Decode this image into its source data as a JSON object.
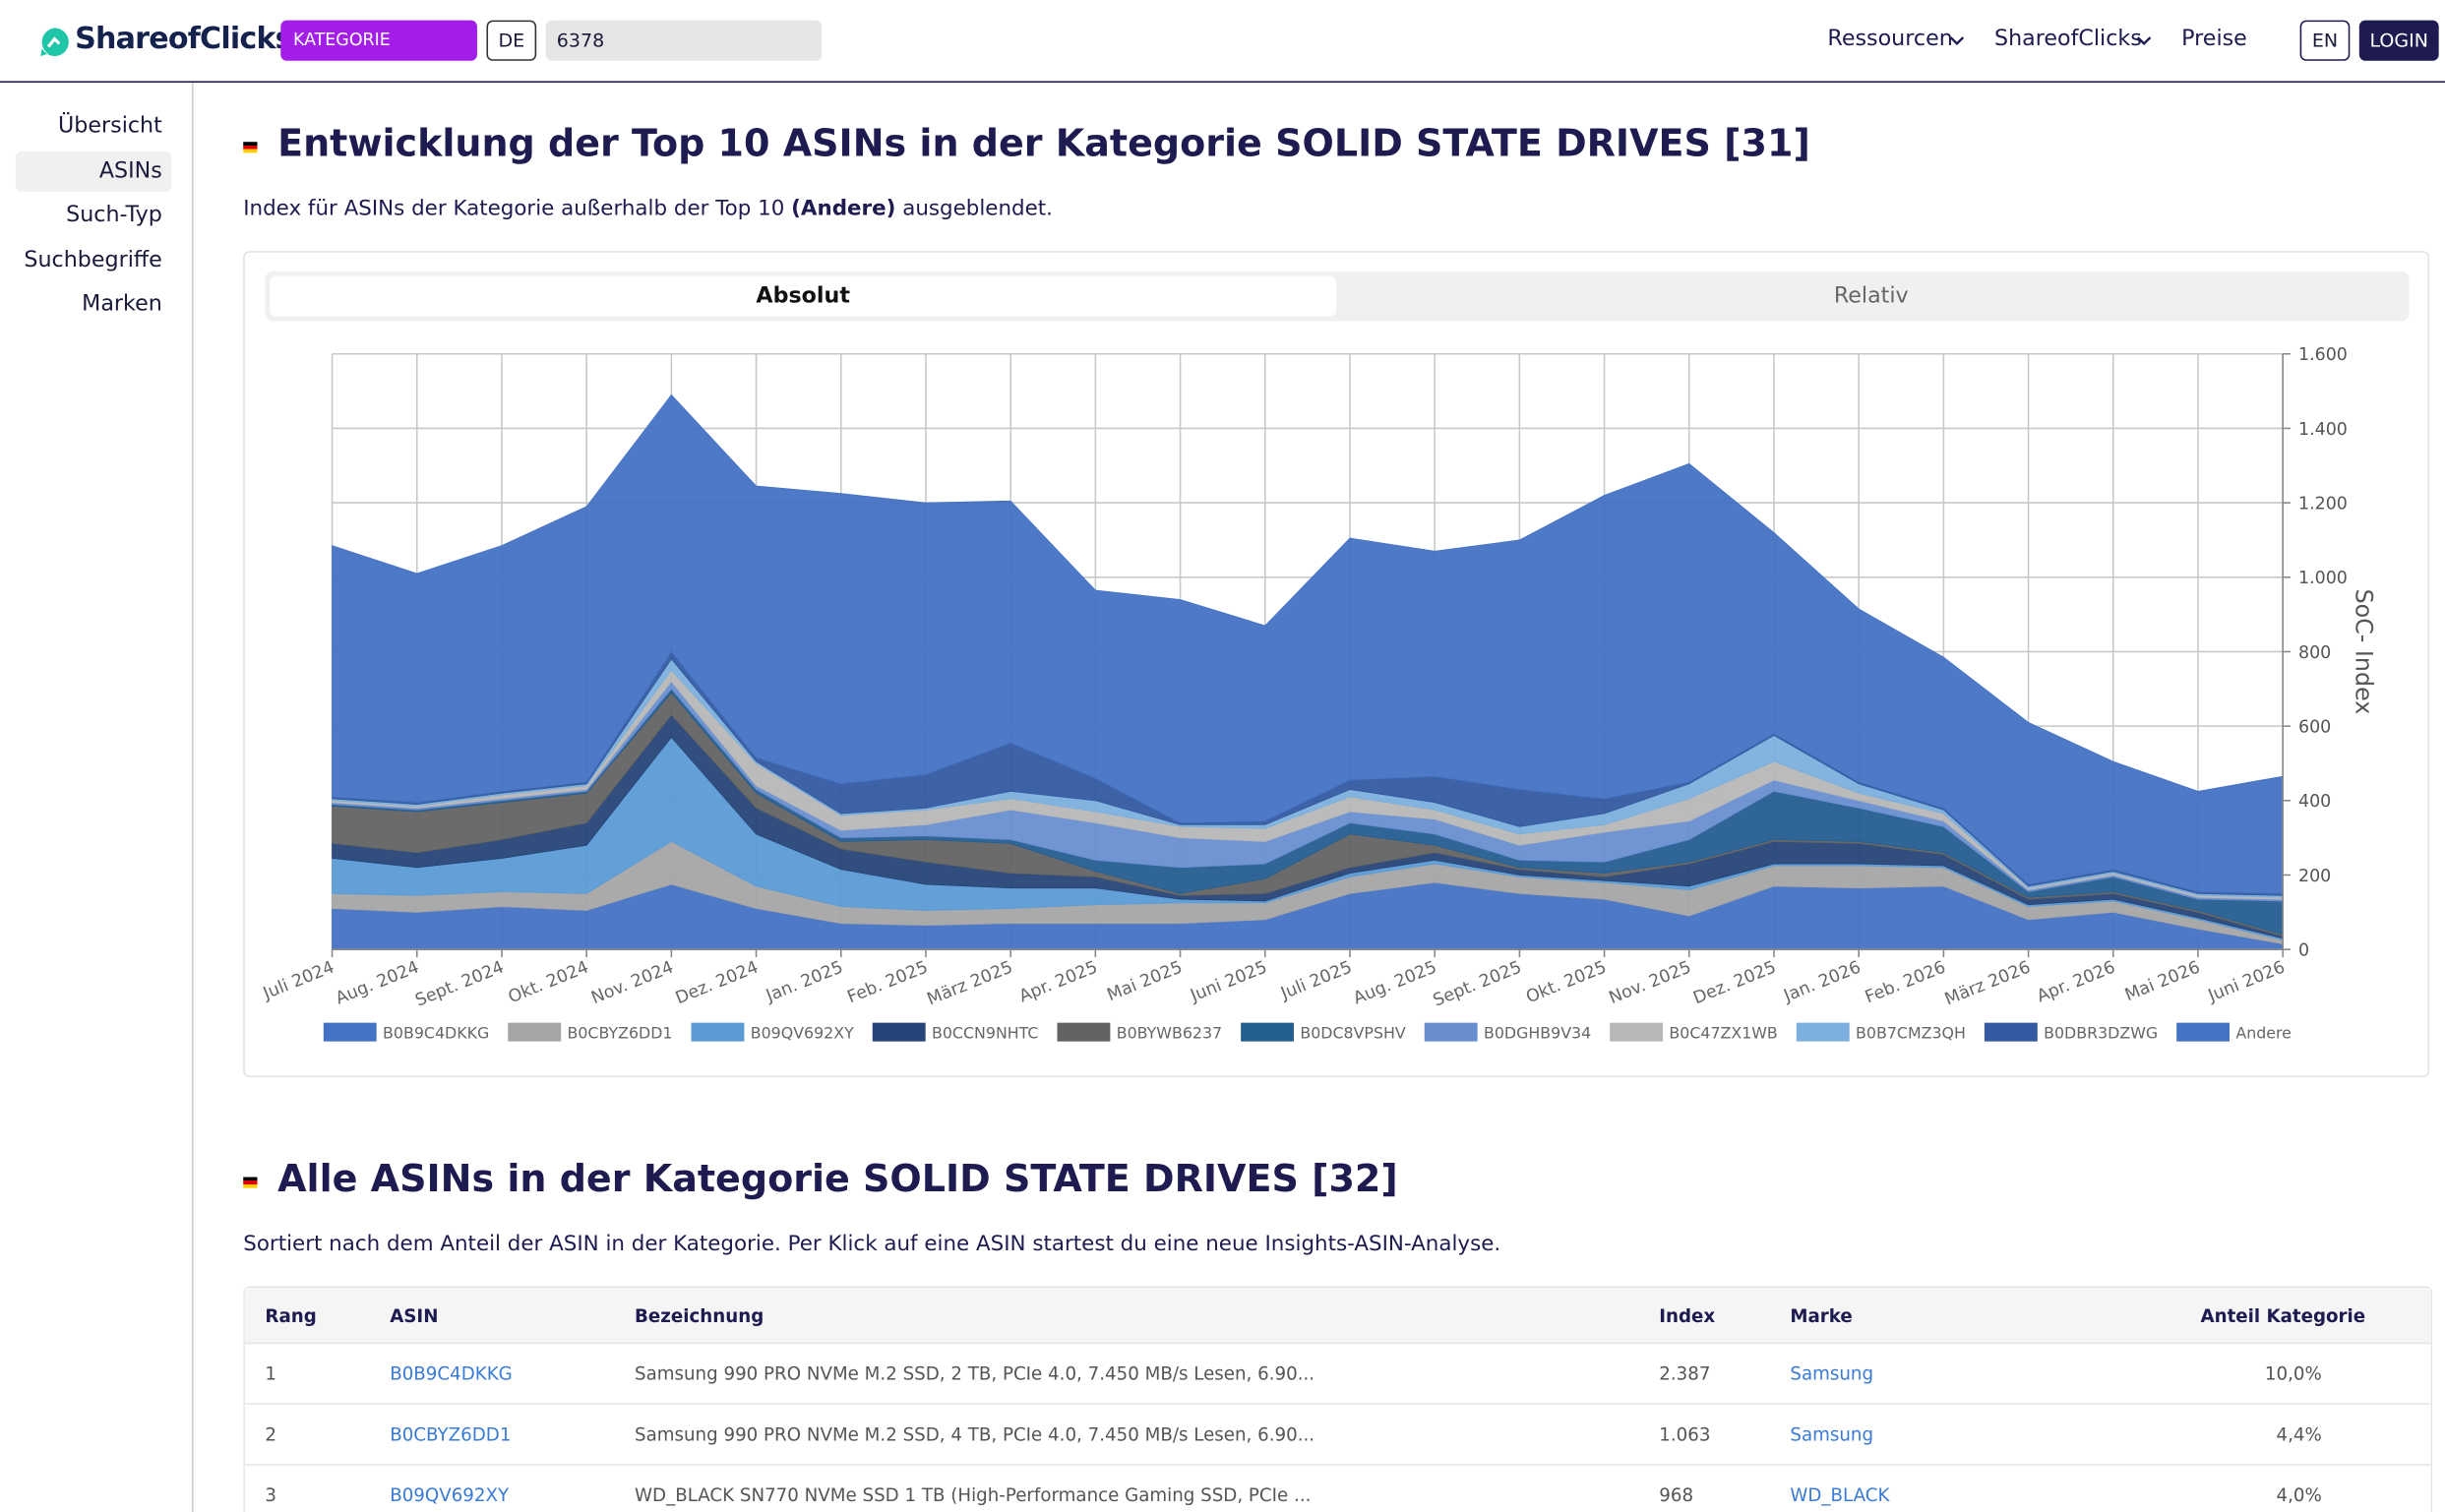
{
  "header": {
    "logo": "ShareofClicks",
    "mode": "KATEGORIE",
    "country": "DE",
    "category_id": "6378",
    "nav": [
      "Ressourcen",
      "ShareofClicks",
      "Preise"
    ],
    "language": "EN",
    "login": "LOGIN"
  },
  "sidebar": [
    "Übersicht",
    "ASINs",
    "Such-Typ",
    "Suchbegriffe",
    "Marken"
  ],
  "section1_note": {
    "before": "Index für ASINs der Kategorie außerhalb der Top 10",
    "bold": "(Andere)",
    "after": "ausgeblendet."
  },
  "view_tabs": [
    "Absolut",
    "Relativ"
  ],
  "chart_data": {
    "type": "stacked_area",
    "title": "Entwicklung der Top 10 ASINs in der Kategorie SOLID STATE DRIVES [31]",
    "y_label": "SoC- Index",
    "categories": [
      "Juli 2024",
      "Aug. 2024",
      "Sept. 2024",
      "Okt. 2024",
      "Nov. 2024",
      "Dez. 2024",
      "Jan. 2025",
      "Feb. 2025",
      "März 2025",
      "Apr. 2025",
      "Mai 2025",
      "Juni 2025",
      "Juli 2025",
      "Aug. 2025",
      "Sept. 2025",
      "Okt. 2025",
      "Nov. 2025",
      "Dez. 2025",
      "Jan. 2026",
      "Feb. 2026",
      "März 2026",
      "Apr. 2026",
      "Mai 2026",
      "Juni 2026"
    ],
    "series": [
      {
        "name": "B0B9C4DKKG",
        "color": "#4472c4",
        "values": [
          110,
          100,
          115,
          105,
          175,
          110,
          70,
          65,
          70,
          70,
          70,
          80,
          150,
          180,
          150,
          135,
          90,
          170,
          165,
          170,
          80,
          100,
          55,
          15
        ]
      },
      {
        "name": "B0CBYZ6DD1",
        "color": "#a5a5a5",
        "values": [
          40,
          45,
          40,
          45,
          115,
          60,
          45,
          40,
          40,
          50,
          55,
          45,
          45,
          50,
          45,
          45,
          70,
          55,
          60,
          50,
          35,
          30,
          25,
          10
        ]
      },
      {
        "name": "B09QV692XY",
        "color": "#5b9bd5",
        "values": [
          95,
          75,
          90,
          130,
          280,
          140,
          100,
          70,
          55,
          45,
          10,
          5,
          10,
          10,
          5,
          5,
          10,
          5,
          5,
          5,
          5,
          5,
          5,
          5
        ]
      },
      {
        "name": "B0CCN9NHTC",
        "color": "#264478",
        "values": [
          40,
          40,
          50,
          60,
          60,
          70,
          55,
          60,
          40,
          30,
          10,
          20,
          15,
          20,
          15,
          10,
          60,
          60,
          55,
          30,
          15,
          15,
          15,
          5
        ]
      },
      {
        "name": "B0BYWB6237",
        "color": "#636363",
        "values": [
          100,
          110,
          100,
          80,
          60,
          40,
          20,
          60,
          80,
          15,
          5,
          40,
          90,
          20,
          5,
          10,
          5,
          5,
          5,
          5,
          5,
          5,
          5,
          5
        ]
      },
      {
        "name": "B0DC8VPSHV",
        "color": "#255e91",
        "values": [
          5,
          5,
          5,
          5,
          10,
          10,
          10,
          10,
          10,
          30,
          70,
          40,
          30,
          30,
          20,
          30,
          60,
          130,
          90,
          70,
          15,
          40,
          30,
          90
        ]
      },
      {
        "name": "B0DGHB9V34",
        "color": "#698ed0",
        "values": [
          5,
          5,
          5,
          5,
          20,
          10,
          20,
          30,
          80,
          100,
          80,
          60,
          30,
          40,
          40,
          80,
          50,
          30,
          20,
          15,
          5,
          5,
          5,
          5
        ]
      },
      {
        "name": "B0C47ZX1WB",
        "color": "#b7b7b7",
        "values": [
          5,
          5,
          10,
          10,
          30,
          60,
          40,
          40,
          30,
          30,
          30,
          35,
          40,
          25,
          30,
          20,
          60,
          50,
          20,
          20,
          5,
          5,
          5,
          5
        ]
      },
      {
        "name": "B0B7CMZ3QH",
        "color": "#7cafdd",
        "values": [
          5,
          5,
          5,
          5,
          30,
          5,
          5,
          5,
          20,
          30,
          5,
          10,
          20,
          20,
          20,
          30,
          40,
          70,
          25,
          10,
          5,
          5,
          5,
          5
        ]
      },
      {
        "name": "B0DBR3DZWG",
        "color": "#335aa1",
        "values": [
          5,
          5,
          5,
          5,
          20,
          10,
          80,
          90,
          130,
          60,
          5,
          10,
          25,
          70,
          100,
          40,
          5,
          5,
          5,
          5,
          5,
          5,
          5,
          5
        ]
      },
      {
        "name": "Andere",
        "color": "#4472c4",
        "values": [
          675,
          615,
          660,
          740,
          690,
          730,
          780,
          730,
          650,
          505,
          600,
          525,
          650,
          605,
          670,
          815,
          855,
          540,
          465,
          405,
          435,
          290,
          270,
          315
        ]
      }
    ],
    "ylim": [
      0,
      1600
    ],
    "yticks": [
      0,
      200,
      400,
      600,
      800,
      {
        "value": 1000,
        "label": "1.000"
      },
      {
        "value": 1200,
        "label": "1.200"
      },
      {
        "value": 1400,
        "label": "1.400"
      },
      {
        "value": 1600,
        "label": "1.600"
      }
    ],
    "grid": true,
    "legend": "bottom"
  },
  "section2": {
    "title": "Alle ASINs in der Kategorie SOLID STATE DRIVES [32]",
    "note": "Sortiert nach dem Anteil der ASIN in der Kategorie. Per Klick auf eine ASIN startest du eine neue Insights-ASIN-Analyse."
  },
  "table": {
    "columns": [
      "Rang",
      "ASIN",
      "Bezeichnung",
      "Index",
      "Marke",
      "Anteil Kategorie"
    ],
    "rows": [
      [
        "1",
        "B0B9C4DKKG",
        "Samsung 990 PRO NVMe M.2 SSD, 2 TB, PCIe 4.0, 7.450 MB/s Lesen, 6.90...",
        "2.387",
        "Samsung",
        "10,0%"
      ],
      [
        "2",
        "B0CBYZ6DD1",
        "Samsung 990 PRO NVMe M.2 SSD, 4 TB, PCIe 4.0, 7.450 MB/s Lesen, 6.90...",
        "1.063",
        "Samsung",
        "4,4%"
      ],
      [
        "3",
        "B09QV692XY",
        "WD_BLACK SN770 NVMe SSD 1 TB (High-Performance Gaming SSD, PCIe ...",
        "968",
        "WD_BLACK",
        "4,0%"
      ]
    ]
  }
}
